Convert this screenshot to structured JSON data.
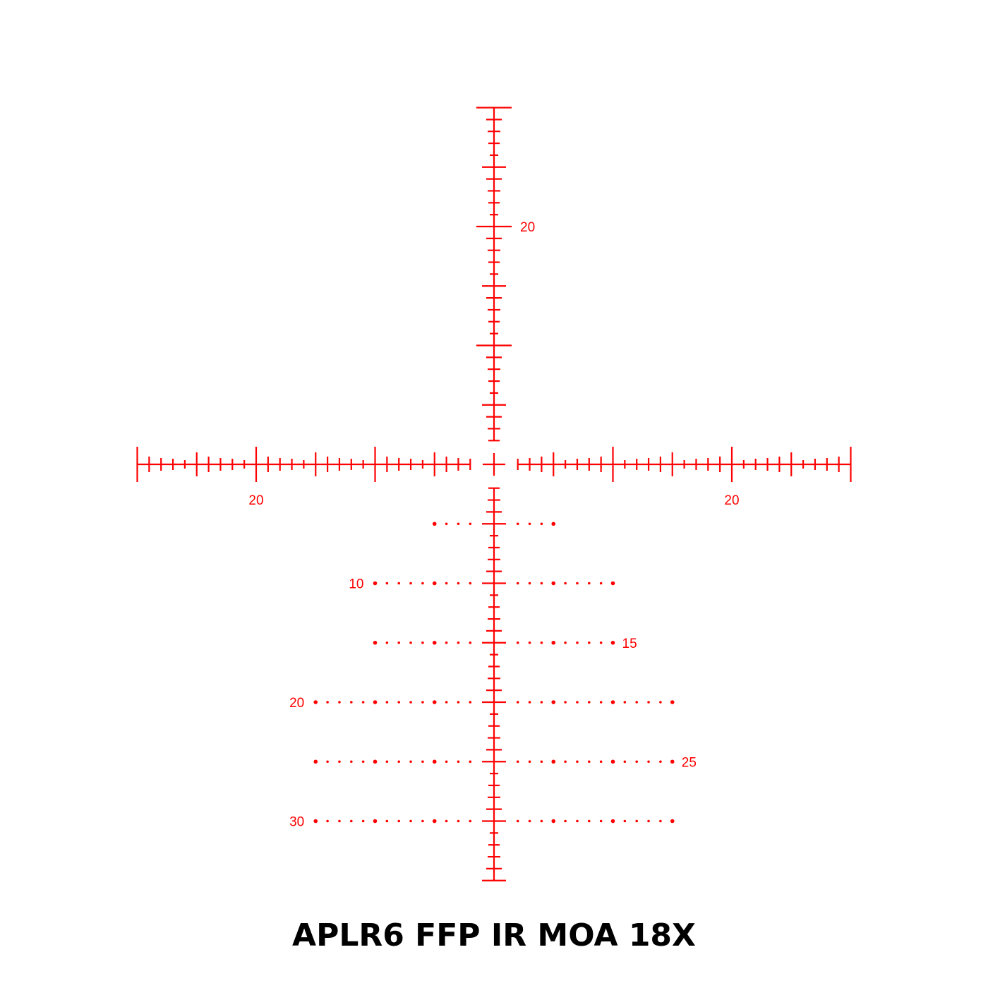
{
  "title": "APLR6 FFP IR MOA 18X",
  "colors": {
    "reticle": "#ff0000",
    "title": "#000000"
  },
  "reticle": {
    "unit": "MOA",
    "horizontal_range": [
      -30,
      30
    ],
    "center_gap": 2,
    "vertical_top": 30,
    "vertical_bottom": 35,
    "horizontal_labels": [
      {
        "value": -20,
        "text": "20"
      },
      {
        "value": 20,
        "text": "20"
      }
    ],
    "vertical_top_labels": [
      {
        "value": 20,
        "text": "20"
      }
    ],
    "hold_rows": [
      {
        "drop": 5,
        "extent": 5,
        "label": "",
        "label_side": ""
      },
      {
        "drop": 10,
        "extent": 10,
        "label": "10",
        "label_side": "left"
      },
      {
        "drop": 15,
        "extent": 10,
        "label": "15",
        "label_side": "right"
      },
      {
        "drop": 20,
        "extent": 15,
        "label": "20",
        "label_side": "left"
      },
      {
        "drop": 25,
        "extent": 15,
        "label": "25",
        "label_side": "right"
      },
      {
        "drop": 30,
        "extent": 15,
        "label": "30",
        "label_side": "left"
      }
    ]
  }
}
